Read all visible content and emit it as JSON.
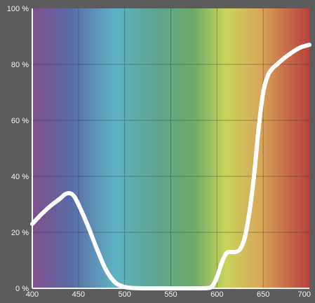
{
  "chart_data": {
    "type": "line",
    "title": "",
    "xlabel": "",
    "ylabel": "",
    "xlim": [
      400,
      700
    ],
    "ylim": [
      0,
      100
    ],
    "grid": true,
    "legend": "none",
    "x_ticks": [
      400,
      450,
      500,
      550,
      600,
      650,
      700
    ],
    "y_ticks": [
      0,
      20,
      40,
      60,
      80,
      100
    ],
    "x_tick_labels": [
      "400",
      "450",
      "500",
      "550",
      "600",
      "650",
      "700"
    ],
    "y_tick_labels": [
      "0 %",
      "20 %",
      "40 %",
      "60 %",
      "80 %",
      "100 %"
    ],
    "series": [
      {
        "color": "#ffffff",
        "x": [
          400,
          410,
          420,
          430,
          435,
          440,
          445,
          450,
          460,
          470,
          480,
          490,
          500,
          505,
          510,
          520,
          550,
          580,
          590,
          595,
          600,
          605,
          610,
          615,
          620,
          625,
          630,
          635,
          640,
          645,
          650,
          655,
          660,
          665,
          670,
          680,
          690,
          700
        ],
        "y": [
          23,
          26.5,
          29.5,
          32,
          33.5,
          34,
          33,
          30,
          22.5,
          14,
          6.5,
          2,
          0.5,
          0.2,
          0.1,
          0,
          0,
          0,
          0.1,
          0.8,
          4,
          9,
          12.5,
          13,
          13,
          14,
          18,
          27,
          40,
          57,
          70,
          76,
          78.5,
          80,
          81.5,
          84,
          86,
          87
        ]
      }
    ],
    "background": "visible spectrum gradient",
    "spectrum_colors": [
      "#7f4f8c",
      "#5a6aa6",
      "#5fb3c4",
      "#5ea48e",
      "#6caa6a",
      "#c9d45a",
      "#d9a85a",
      "#c8724a",
      "#b8413d"
    ]
  }
}
